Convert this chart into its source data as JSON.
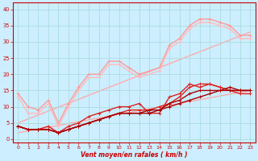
{
  "x": [
    0,
    1,
    2,
    3,
    4,
    5,
    6,
    7,
    8,
    9,
    10,
    11,
    12,
    13,
    14,
    15,
    16,
    17,
    18,
    19,
    20,
    21,
    22,
    23
  ],
  "lines_data": [
    {
      "y": [
        14,
        10,
        9,
        12,
        5,
        11,
        16,
        20,
        20,
        24,
        24,
        22,
        20,
        21,
        22,
        29,
        31,
        35,
        37,
        37,
        36,
        35,
        32,
        32
      ],
      "color": "#ff9999",
      "lw": 1.0,
      "marker": true
    },
    {
      "y": [
        13,
        8,
        8,
        11,
        4,
        10,
        15,
        19,
        19,
        23,
        23,
        21,
        19,
        20,
        21,
        28,
        30,
        34,
        36,
        36,
        35,
        34,
        31,
        31
      ],
      "color": "#ffbbbb",
      "lw": 1.0,
      "marker": true
    },
    {
      "y": [
        4,
        3,
        3,
        4,
        2,
        4,
        5,
        7,
        8,
        9,
        10,
        10,
        11,
        8,
        8,
        13,
        14,
        17,
        16,
        17,
        16,
        15,
        14,
        14
      ],
      "color": "#dd2222",
      "lw": 1.0,
      "marker": true
    },
    {
      "y": [
        4,
        3,
        3,
        3,
        2,
        3,
        4,
        5,
        6,
        7,
        8,
        9,
        9,
        9,
        10,
        11,
        13,
        16,
        17,
        17,
        16,
        15,
        15,
        15
      ],
      "color": "#dd2222",
      "lw": 1.0,
      "marker": true
    },
    {
      "y": [
        4,
        3,
        3,
        3,
        2,
        3,
        4,
        5,
        6,
        7,
        8,
        8,
        8,
        8,
        9,
        10,
        11,
        12,
        13,
        14,
        15,
        16,
        15,
        15
      ],
      "color": "#aa0000",
      "lw": 1.0,
      "marker": true
    },
    {
      "y": [
        4,
        3,
        3,
        3,
        2,
        3,
        4,
        5,
        6,
        7,
        8,
        8,
        8,
        9,
        9,
        11,
        12,
        14,
        15,
        15,
        15,
        15,
        15,
        15
      ],
      "color": "#aa0000",
      "lw": 1.0,
      "marker": true
    }
  ],
  "trend_lines": [
    {
      "x0": 0,
      "y0": 5,
      "x1": 23,
      "y1": 33,
      "color": "#ffaaaa",
      "lw": 1.0
    },
    {
      "x0": 0,
      "y0": 2,
      "x1": 23,
      "y1": 15,
      "color": "#ffaaaa",
      "lw": 1.0
    }
  ],
  "bg_color": "#cceeff",
  "grid_color": "#aadddd",
  "tick_color": "#cc0000",
  "xlabel": "Vent moyen/en rafales ( km/h )",
  "ylabel_ticks": [
    0,
    5,
    10,
    15,
    20,
    25,
    30,
    35,
    40
  ],
  "xticks": [
    0,
    1,
    2,
    3,
    4,
    5,
    6,
    7,
    8,
    9,
    10,
    11,
    12,
    13,
    14,
    15,
    16,
    17,
    18,
    19,
    20,
    21,
    22,
    23
  ],
  "xlim": [
    -0.5,
    23.5
  ],
  "ylim": [
    -1,
    42
  ]
}
